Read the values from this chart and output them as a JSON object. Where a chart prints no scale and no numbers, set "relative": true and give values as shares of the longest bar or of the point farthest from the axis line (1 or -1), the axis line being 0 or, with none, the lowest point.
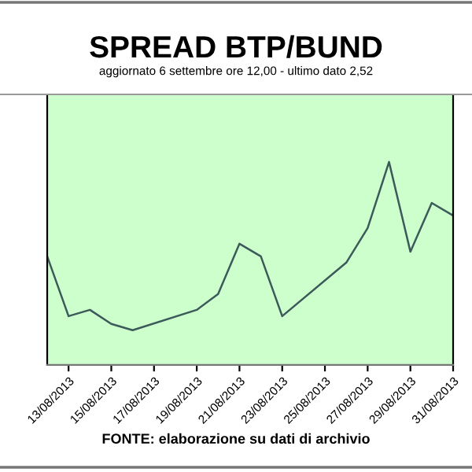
{
  "chart_data": {
    "type": "line",
    "title": "SPREAD BTP/BUND",
    "subtitle": "aggiornato 6 settembre ore 12,00 - ultimo dato 2,52",
    "relative": true,
    "x": [
      "2013-08-12",
      "2013-08-13",
      "2013-08-14",
      "2013-08-15",
      "2013-08-16",
      "2013-08-19",
      "2013-08-20",
      "2013-08-21",
      "2013-08-22",
      "2013-08-23",
      "2013-08-26",
      "2013-08-27",
      "2013-08-28",
      "2013-08-29",
      "2013-08-30",
      "2013-08-31"
    ],
    "series": [
      {
        "color": "#3c5a5a",
        "values": [
          0.535,
          0.24,
          0.271,
          0.202,
          0.171,
          0.271,
          0.349,
          0.597,
          0.535,
          0.24,
          0.504,
          0.674,
          1,
          0.558,
          0.798,
          0.736
        ]
      }
    ],
    "xlim": [
      "2013-08-12",
      "2013-08-31"
    ],
    "xticks": [
      {
        "value": "2013-08-13",
        "label": "13/08/2013"
      },
      {
        "value": "2013-08-15",
        "label": "15/08/2013"
      },
      {
        "value": "2013-08-17",
        "label": "17/08/2013"
      },
      {
        "value": "2013-08-19",
        "label": "19/08/2013"
      },
      {
        "value": "2013-08-21",
        "label": "21/08/2013"
      },
      {
        "value": "2013-08-23",
        "label": "23/08/2013"
      },
      {
        "value": "2013-08-25",
        "label": "25/08/2013"
      },
      {
        "value": "2013-08-27",
        "label": "27/08/2013"
      },
      {
        "value": "2013-08-29",
        "label": "29/08/2013"
      },
      {
        "value": "2013-08-31",
        "label": "31/08/2013"
      }
    ],
    "annotations": [
      "FONTE: elaborazione su dati di archivio"
    ],
    "legend": false,
    "marker": "none",
    "line_style": "solid"
  }
}
